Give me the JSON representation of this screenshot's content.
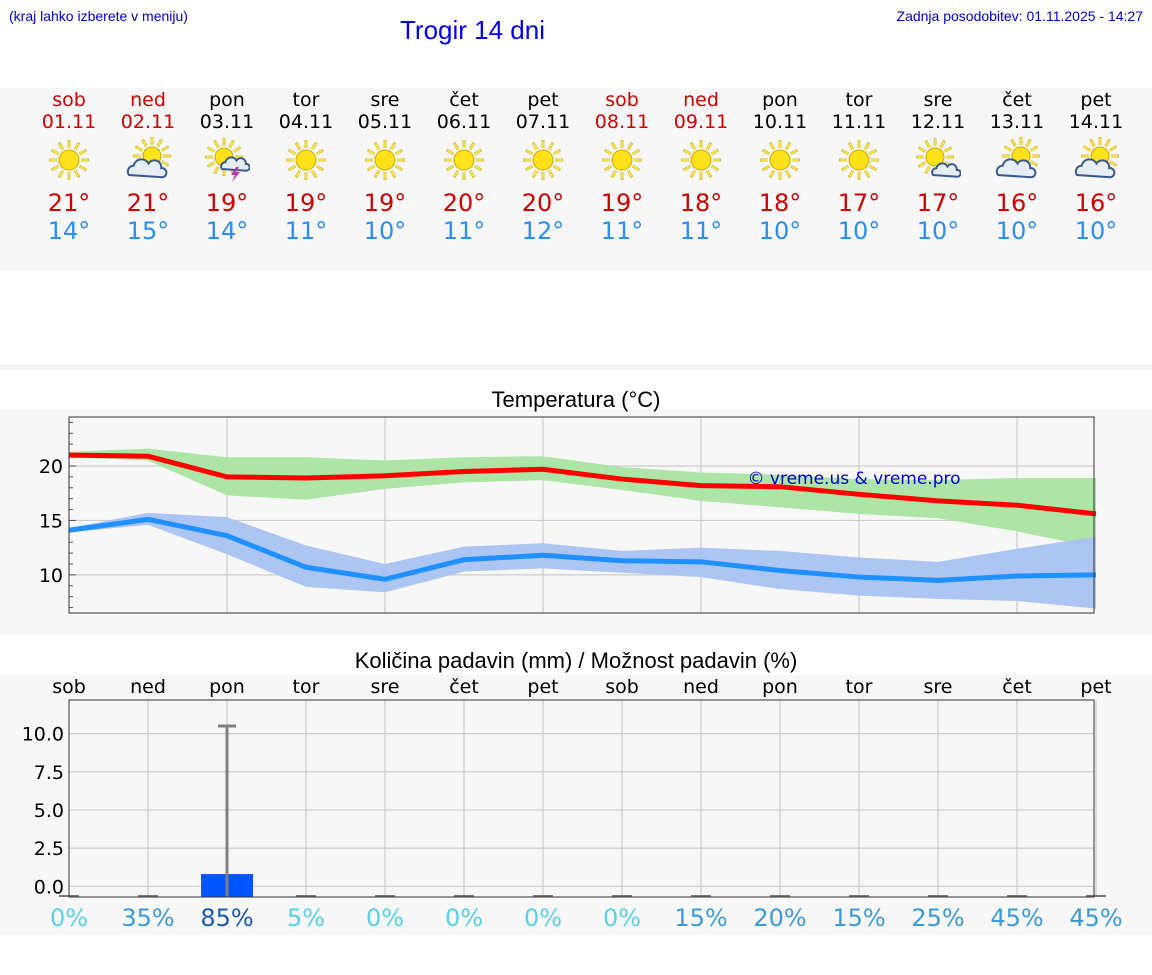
{
  "header": {
    "menu_hint": "(kraj lahko izberete v meniju)",
    "title": "Trogir 14 dni",
    "last_update": "Zadnja posodobitev: 01.11.2025 - 14:27"
  },
  "days": [
    {
      "name": "sob",
      "date": "01.11",
      "icon": "sun-icon",
      "max": "21°",
      "min": "14°",
      "weekend": true
    },
    {
      "name": "ned",
      "date": "02.11",
      "icon": "sun-cloud-icon",
      "max": "21°",
      "min": "15°",
      "weekend": true
    },
    {
      "name": "pon",
      "date": "03.11",
      "icon": "sun-thunderstorm-icon",
      "max": "19°",
      "min": "14°",
      "weekend": false
    },
    {
      "name": "tor",
      "date": "04.11",
      "icon": "sun-icon",
      "max": "19°",
      "min": "11°",
      "weekend": false
    },
    {
      "name": "sre",
      "date": "05.11",
      "icon": "sun-icon",
      "max": "19°",
      "min": "10°",
      "weekend": false
    },
    {
      "name": "čet",
      "date": "06.11",
      "icon": "sun-icon",
      "max": "20°",
      "min": "11°",
      "weekend": false
    },
    {
      "name": "pet",
      "date": "07.11",
      "icon": "sun-icon",
      "max": "20°",
      "min": "12°",
      "weekend": false
    },
    {
      "name": "sob",
      "date": "08.11",
      "icon": "sun-icon",
      "max": "19°",
      "min": "11°",
      "weekend": true
    },
    {
      "name": "ned",
      "date": "09.11",
      "icon": "sun-icon",
      "max": "18°",
      "min": "11°",
      "weekend": true
    },
    {
      "name": "pon",
      "date": "10.11",
      "icon": "sun-icon",
      "max": "18°",
      "min": "10°",
      "weekend": false
    },
    {
      "name": "tor",
      "date": "11.11",
      "icon": "sun-icon",
      "max": "17°",
      "min": "10°",
      "weekend": false
    },
    {
      "name": "sre",
      "date": "12.11",
      "icon": "sun-small-cloud-icon",
      "max": "17°",
      "min": "10°",
      "weekend": false
    },
    {
      "name": "čet",
      "date": "13.11",
      "icon": "sun-cloud-icon",
      "max": "16°",
      "min": "10°",
      "weekend": false
    },
    {
      "name": "pet",
      "date": "14.11",
      "icon": "sun-cloud-icon",
      "max": "16°",
      "min": "10°",
      "weekend": false
    }
  ],
  "colors": {
    "max_line": "#ff0000",
    "max_band": "#a8e4a0",
    "min_line": "#1e90ff",
    "min_band": "#a9c2f2",
    "rain_bar": "#0055ff",
    "errbar": "#808080"
  },
  "chart_data": [
    {
      "type": "line",
      "title": "Temperatura (°C)",
      "watermark": "© vreme.us & vreme.pro",
      "x": [
        0,
        1,
        2,
        3,
        4,
        5,
        6,
        7,
        8,
        9,
        10,
        11,
        12,
        13
      ],
      "ylim": [
        6.5,
        24.5
      ],
      "yticks": [
        10,
        15,
        20
      ],
      "grid": true,
      "series": [
        {
          "name": "max",
          "values": [
            21,
            20.9,
            19,
            18.9,
            19.1,
            19.5,
            19.7,
            18.8,
            18.2,
            18.1,
            17.4,
            16.8,
            16.4,
            15.6
          ],
          "band_low": [
            20.8,
            20.5,
            17.3,
            16.9,
            17.9,
            18.5,
            18.7,
            17.8,
            16.8,
            16.2,
            15.6,
            15.2,
            14,
            12.5
          ],
          "band_high": [
            21.3,
            21.6,
            20.8,
            20.8,
            20.5,
            20.8,
            20.9,
            19.9,
            19.4,
            19.2,
            18.8,
            18.7,
            18.9,
            18.9
          ]
        },
        {
          "name": "min",
          "values": [
            14.1,
            15.1,
            13.6,
            10.7,
            9.6,
            11.4,
            11.8,
            11.3,
            11.2,
            10.4,
            9.8,
            9.5,
            9.9,
            10
          ],
          "band_low": [
            13.9,
            14.6,
            11.9,
            8.9,
            8.4,
            10.3,
            10.6,
            10.2,
            9.8,
            8.7,
            8.1,
            7.8,
            7.6,
            6.9
          ],
          "band_high": [
            14.3,
            15.7,
            15.3,
            12.7,
            11,
            12.6,
            12.9,
            12.2,
            12.5,
            12.2,
            11.6,
            11.2,
            12.4,
            13.5
          ]
        }
      ]
    },
    {
      "type": "bar",
      "title": "Količina padavin (mm) / Možnost padavin (%)",
      "categories": [
        "sob",
        "ned",
        "pon",
        "tor",
        "sre",
        "čet",
        "pet",
        "sob",
        "ned",
        "pon",
        "tor",
        "sre",
        "čet",
        "pet"
      ],
      "values": [
        0,
        0,
        0.8,
        0,
        0,
        0,
        0,
        0,
        0,
        0,
        0,
        0,
        0,
        0
      ],
      "error_high": [
        0,
        0,
        10.5,
        0,
        0,
        0,
        0,
        0,
        0,
        0,
        0,
        0,
        0,
        0
      ],
      "ylim": [
        -0.7,
        12.2
      ],
      "yticks": [
        0.0,
        2.5,
        5.0,
        7.5,
        10.0
      ],
      "ytick_labels": [
        "0.0",
        "2.5",
        "5.0",
        "7.5",
        "10.0"
      ],
      "probability": [
        "0%",
        "35%",
        "85%",
        "5%",
        "0%",
        "0%",
        "0%",
        "0%",
        "15%",
        "20%",
        "15%",
        "25%",
        "45%",
        "45%"
      ],
      "probability_values": [
        0,
        35,
        85,
        5,
        0,
        0,
        0,
        0,
        15,
        20,
        15,
        25,
        45,
        45
      ]
    }
  ]
}
